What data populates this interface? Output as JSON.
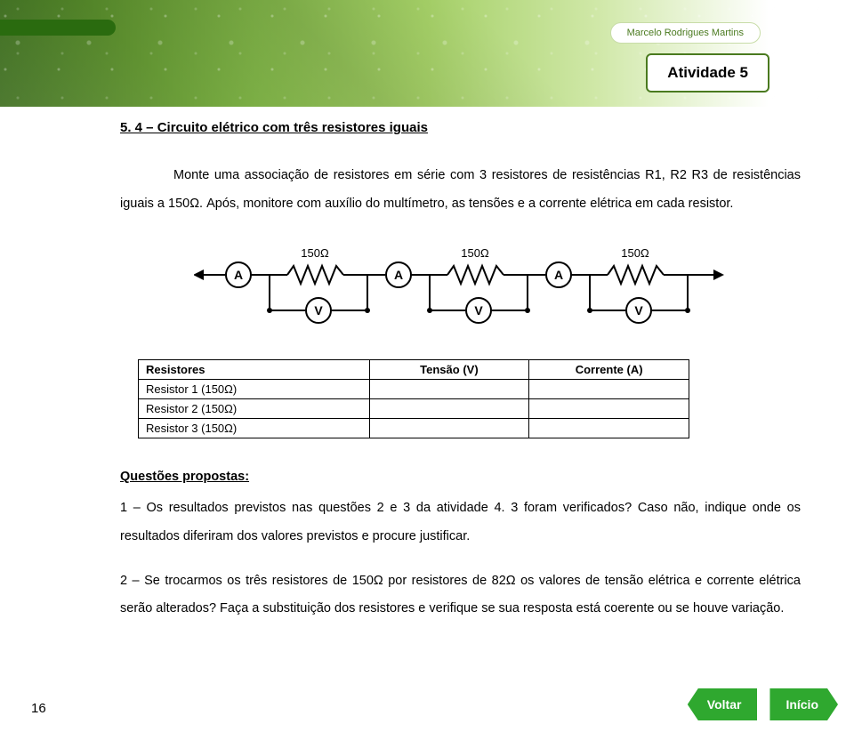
{
  "header": {
    "author": "Marcelo Rodrigues Martins",
    "activity_label": "Atividade 5"
  },
  "section": {
    "title": "5. 4 – Circuito elétrico com três resistores iguais",
    "intro": "Monte uma associação de resistores em série com 3 resistores de resistências R1, R2 R3 de resistências iguais a 150Ω. Após, monitore com auxílio do multímetro, as tensões e a corrente elétrica em cada resistor."
  },
  "circuit": {
    "resistor_labels": [
      "150Ω",
      "150Ω",
      "150Ω"
    ],
    "ammeter_label": "A",
    "voltmeter_label": "V",
    "wire_color": "#000000",
    "label_fontsize": 13
  },
  "table": {
    "columns": [
      "Resistores",
      "Tensão (V)",
      "Corrente (A)"
    ],
    "rows": [
      [
        "Resistor 1 (150Ω)",
        "",
        ""
      ],
      [
        "Resistor 2 (150Ω)",
        "",
        ""
      ],
      [
        "Resistor 3 (150Ω)",
        "",
        ""
      ]
    ],
    "col_widths": [
      "260px",
      "180px",
      "180px"
    ]
  },
  "questions": {
    "title": "Questões propostas:",
    "q1": "1 – Os resultados previstos nas questões 2 e 3 da atividade 4. 3 foram verificados? Caso não, indique onde os resultados diferiram dos valores previstos e procure justificar.",
    "q2": "2 – Se trocarmos os três resistores de 150Ω por resistores de 82Ω os valores de tensão elétrica e corrente elétrica serão alterados? Faça a substituição dos resistores e verifique se sua resposta está coerente ou se houve variação."
  },
  "nav": {
    "back_label": "Voltar",
    "home_label": "Início"
  },
  "page_number": "16",
  "colors": {
    "nav_button_bg": "#2fa82f",
    "nav_button_text": "#ffffff",
    "activity_border": "#4a7a1f",
    "author_text": "#4a7a1f"
  }
}
